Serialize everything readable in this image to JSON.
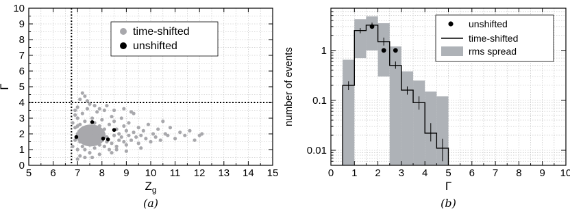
{
  "chart_data": [
    {
      "panel_label": "(a)",
      "type": "scatter",
      "xlabel": "Z",
      "xlabel_subscript": "g",
      "ylabel": "Γ",
      "xlim": [
        5,
        15
      ],
      "ylim": [
        0,
        10
      ],
      "xticks": [
        "5",
        "6",
        "7",
        "8",
        "9",
        "10",
        "11",
        "12",
        "13",
        "14",
        "15"
      ],
      "yticks": [
        "0",
        "1",
        "2",
        "3",
        "4",
        "5",
        "6",
        "7",
        "8",
        "9",
        "10"
      ],
      "grid": true,
      "legend_position": "top-right",
      "cut_lines": {
        "x": 6.75,
        "y": 4.0
      },
      "series": [
        {
          "name": "time-shifted",
          "color": "#a8a8ac",
          "points": [
            [
              6.8,
              1.2
            ],
            [
              6.9,
              1.6
            ],
            [
              6.9,
              2.4
            ],
            [
              7.0,
              1.0
            ],
            [
              7.0,
              2.0
            ],
            [
              7.0,
              3.0
            ],
            [
              7.1,
              1.5
            ],
            [
              7.1,
              2.6
            ],
            [
              7.1,
              0.6
            ],
            [
              7.2,
              1.8
            ],
            [
              7.2,
              3.3
            ],
            [
              7.2,
              1.2
            ],
            [
              7.3,
              2.2
            ],
            [
              7.3,
              1.0
            ],
            [
              7.3,
              2.8
            ],
            [
              7.4,
              1.6
            ],
            [
              7.4,
              2.0
            ],
            [
              7.4,
              3.6
            ],
            [
              7.5,
              1.3
            ],
            [
              7.5,
              2.4
            ],
            [
              7.5,
              0.8
            ],
            [
              7.6,
              1.9
            ],
            [
              7.6,
              3.0
            ],
            [
              7.6,
              1.4
            ],
            [
              7.7,
              2.2
            ],
            [
              7.7,
              1.1
            ],
            [
              7.7,
              2.7
            ],
            [
              7.8,
              1.7
            ],
            [
              7.8,
              2.1
            ],
            [
              7.8,
              3.4
            ],
            [
              7.9,
              1.3
            ],
            [
              7.9,
              2.5
            ],
            [
              7.9,
              1.9
            ],
            [
              8.0,
              1.6
            ],
            [
              8.0,
              2.0
            ],
            [
              8.0,
              2.9
            ],
            [
              8.1,
              1.2
            ],
            [
              8.1,
              2.3
            ],
            [
              8.2,
              1.8
            ],
            [
              8.2,
              1.5
            ],
            [
              7.0,
              1.8
            ],
            [
              7.1,
              2.1
            ],
            [
              7.2,
              1.5
            ],
            [
              7.3,
              1.7
            ],
            [
              7.4,
              2.3
            ],
            [
              7.5,
              1.7
            ],
            [
              7.6,
              1.6
            ],
            [
              7.7,
              1.9
            ],
            [
              7.8,
              1.4
            ],
            [
              7.9,
              2.2
            ],
            [
              8.0,
              1.8
            ],
            [
              7.2,
              2.0
            ],
            [
              7.4,
              1.8
            ],
            [
              7.6,
              2.1
            ],
            [
              7.0,
              2.5
            ],
            [
              7.3,
              1.4
            ],
            [
              6.8,
              2.7
            ],
            [
              6.9,
              3.2
            ],
            [
              7.0,
              3.7
            ],
            [
              7.1,
              4.2
            ],
            [
              7.2,
              4.6
            ],
            [
              7.3,
              4.4
            ],
            [
              7.5,
              3.9
            ],
            [
              7.7,
              3.8
            ],
            [
              7.9,
              3.6
            ],
            [
              8.1,
              3.5
            ],
            [
              6.9,
              3.5
            ],
            [
              7.4,
              4.1
            ],
            [
              7.0,
              0.4
            ],
            [
              7.3,
              0.5
            ],
            [
              7.6,
              0.5
            ],
            [
              7.9,
              0.7
            ],
            [
              8.3,
              1.0
            ],
            [
              8.3,
              2.6
            ],
            [
              8.4,
              1.4
            ],
            [
              8.4,
              3.1
            ],
            [
              8.5,
              1.9
            ],
            [
              8.5,
              2.8
            ],
            [
              8.6,
              1.2
            ],
            [
              8.6,
              2.3
            ],
            [
              8.7,
              1.6
            ],
            [
              8.7,
              2.0
            ],
            [
              8.8,
              1.8
            ],
            [
              8.8,
              3.0
            ],
            [
              8.9,
              1.5
            ],
            [
              8.9,
              2.5
            ],
            [
              9.0,
              2.2
            ],
            [
              9.0,
              1.3
            ],
            [
              9.1,
              1.9
            ],
            [
              9.1,
              2.7
            ],
            [
              9.2,
              1.6
            ],
            [
              9.3,
              2.1
            ],
            [
              9.3,
              3.3
            ],
            [
              9.4,
              1.8
            ],
            [
              9.5,
              1.4
            ],
            [
              9.5,
              2.4
            ],
            [
              9.6,
              1.9
            ],
            [
              9.7,
              2.2
            ],
            [
              9.8,
              1.7
            ],
            [
              9.9,
              2.6
            ],
            [
              10.0,
              1.5
            ],
            [
              10.1,
              2.0
            ],
            [
              10.2,
              1.8
            ],
            [
              10.3,
              2.3
            ],
            [
              10.4,
              1.6
            ],
            [
              10.5,
              2.8
            ],
            [
              10.6,
              2.0
            ],
            [
              10.7,
              1.9
            ],
            [
              10.8,
              2.4
            ],
            [
              11.0,
              1.7
            ],
            [
              11.2,
              2.1
            ],
            [
              11.4,
              1.9
            ],
            [
              11.6,
              2.2
            ],
            [
              11.8,
              1.6
            ],
            [
              12.0,
              1.9
            ],
            [
              12.1,
              2.0
            ],
            [
              8.5,
              3.5
            ],
            [
              8.9,
              3.6
            ],
            [
              9.2,
              3.4
            ],
            [
              8.2,
              3.8
            ],
            [
              8.6,
              1.0
            ],
            [
              9.0,
              0.9
            ],
            [
              8.4,
              0.8
            ],
            [
              9.6,
              1.1
            ]
          ]
        },
        {
          "name": "unshifted",
          "color": "#000000",
          "points": [
            [
              6.95,
              1.8
            ],
            [
              7.6,
              2.75
            ],
            [
              8.05,
              1.7
            ],
            [
              8.25,
              1.65
            ],
            [
              8.5,
              2.25
            ]
          ]
        }
      ]
    },
    {
      "panel_label": "(b)",
      "type": "histogram",
      "xlabel": "Γ",
      "ylabel": "number of events",
      "xlim": [
        0,
        10
      ],
      "ylim": [
        0.005,
        7
      ],
      "yscale": "log",
      "xticks": [
        "0",
        "1",
        "2",
        "3",
        "4",
        "5",
        "6",
        "7",
        "8",
        "9",
        "10"
      ],
      "yticks": [
        {
          "value": 0.01,
          "label": "0.01"
        },
        {
          "value": 0.1,
          "label": "0.1"
        },
        {
          "value": 1,
          "label": "1"
        }
      ],
      "grid": true,
      "legend_position": "top-right",
      "bin_edges": [
        0.5,
        1.0,
        1.5,
        2.0,
        2.5,
        3.0,
        3.5,
        4.0,
        4.5,
        5.0
      ],
      "series": [
        {
          "name": "unshifted",
          "style": "points",
          "color": "#000000",
          "x": [
            1.75,
            2.25,
            2.75
          ],
          "y": [
            3.0,
            1.0,
            1.0
          ]
        },
        {
          "name": "time-shifted",
          "style": "step",
          "color": "#000000",
          "values": [
            0.2,
            2.5,
            3.2,
            1.5,
            0.5,
            0.16,
            0.09,
            0.022,
            0.011
          ],
          "errors_low": [
            0.16,
            2.2,
            2.8,
            1.25,
            0.43,
            0.13,
            0.065,
            0.015,
            0.006
          ],
          "errors_high": [
            0.24,
            2.8,
            3.6,
            1.8,
            0.6,
            0.19,
            0.12,
            0.035,
            0.017
          ]
        },
        {
          "name": "rms spread",
          "style": "band",
          "color": "#aeb2b7",
          "low": [
            0.005,
            0.7,
            1.0,
            0.3,
            0.005,
            0.005,
            0.005,
            0.005,
            0.005
          ],
          "high": [
            0.65,
            4.2,
            4.8,
            3.5,
            1.2,
            0.38,
            0.25,
            0.15,
            0.12
          ]
        }
      ]
    }
  ]
}
